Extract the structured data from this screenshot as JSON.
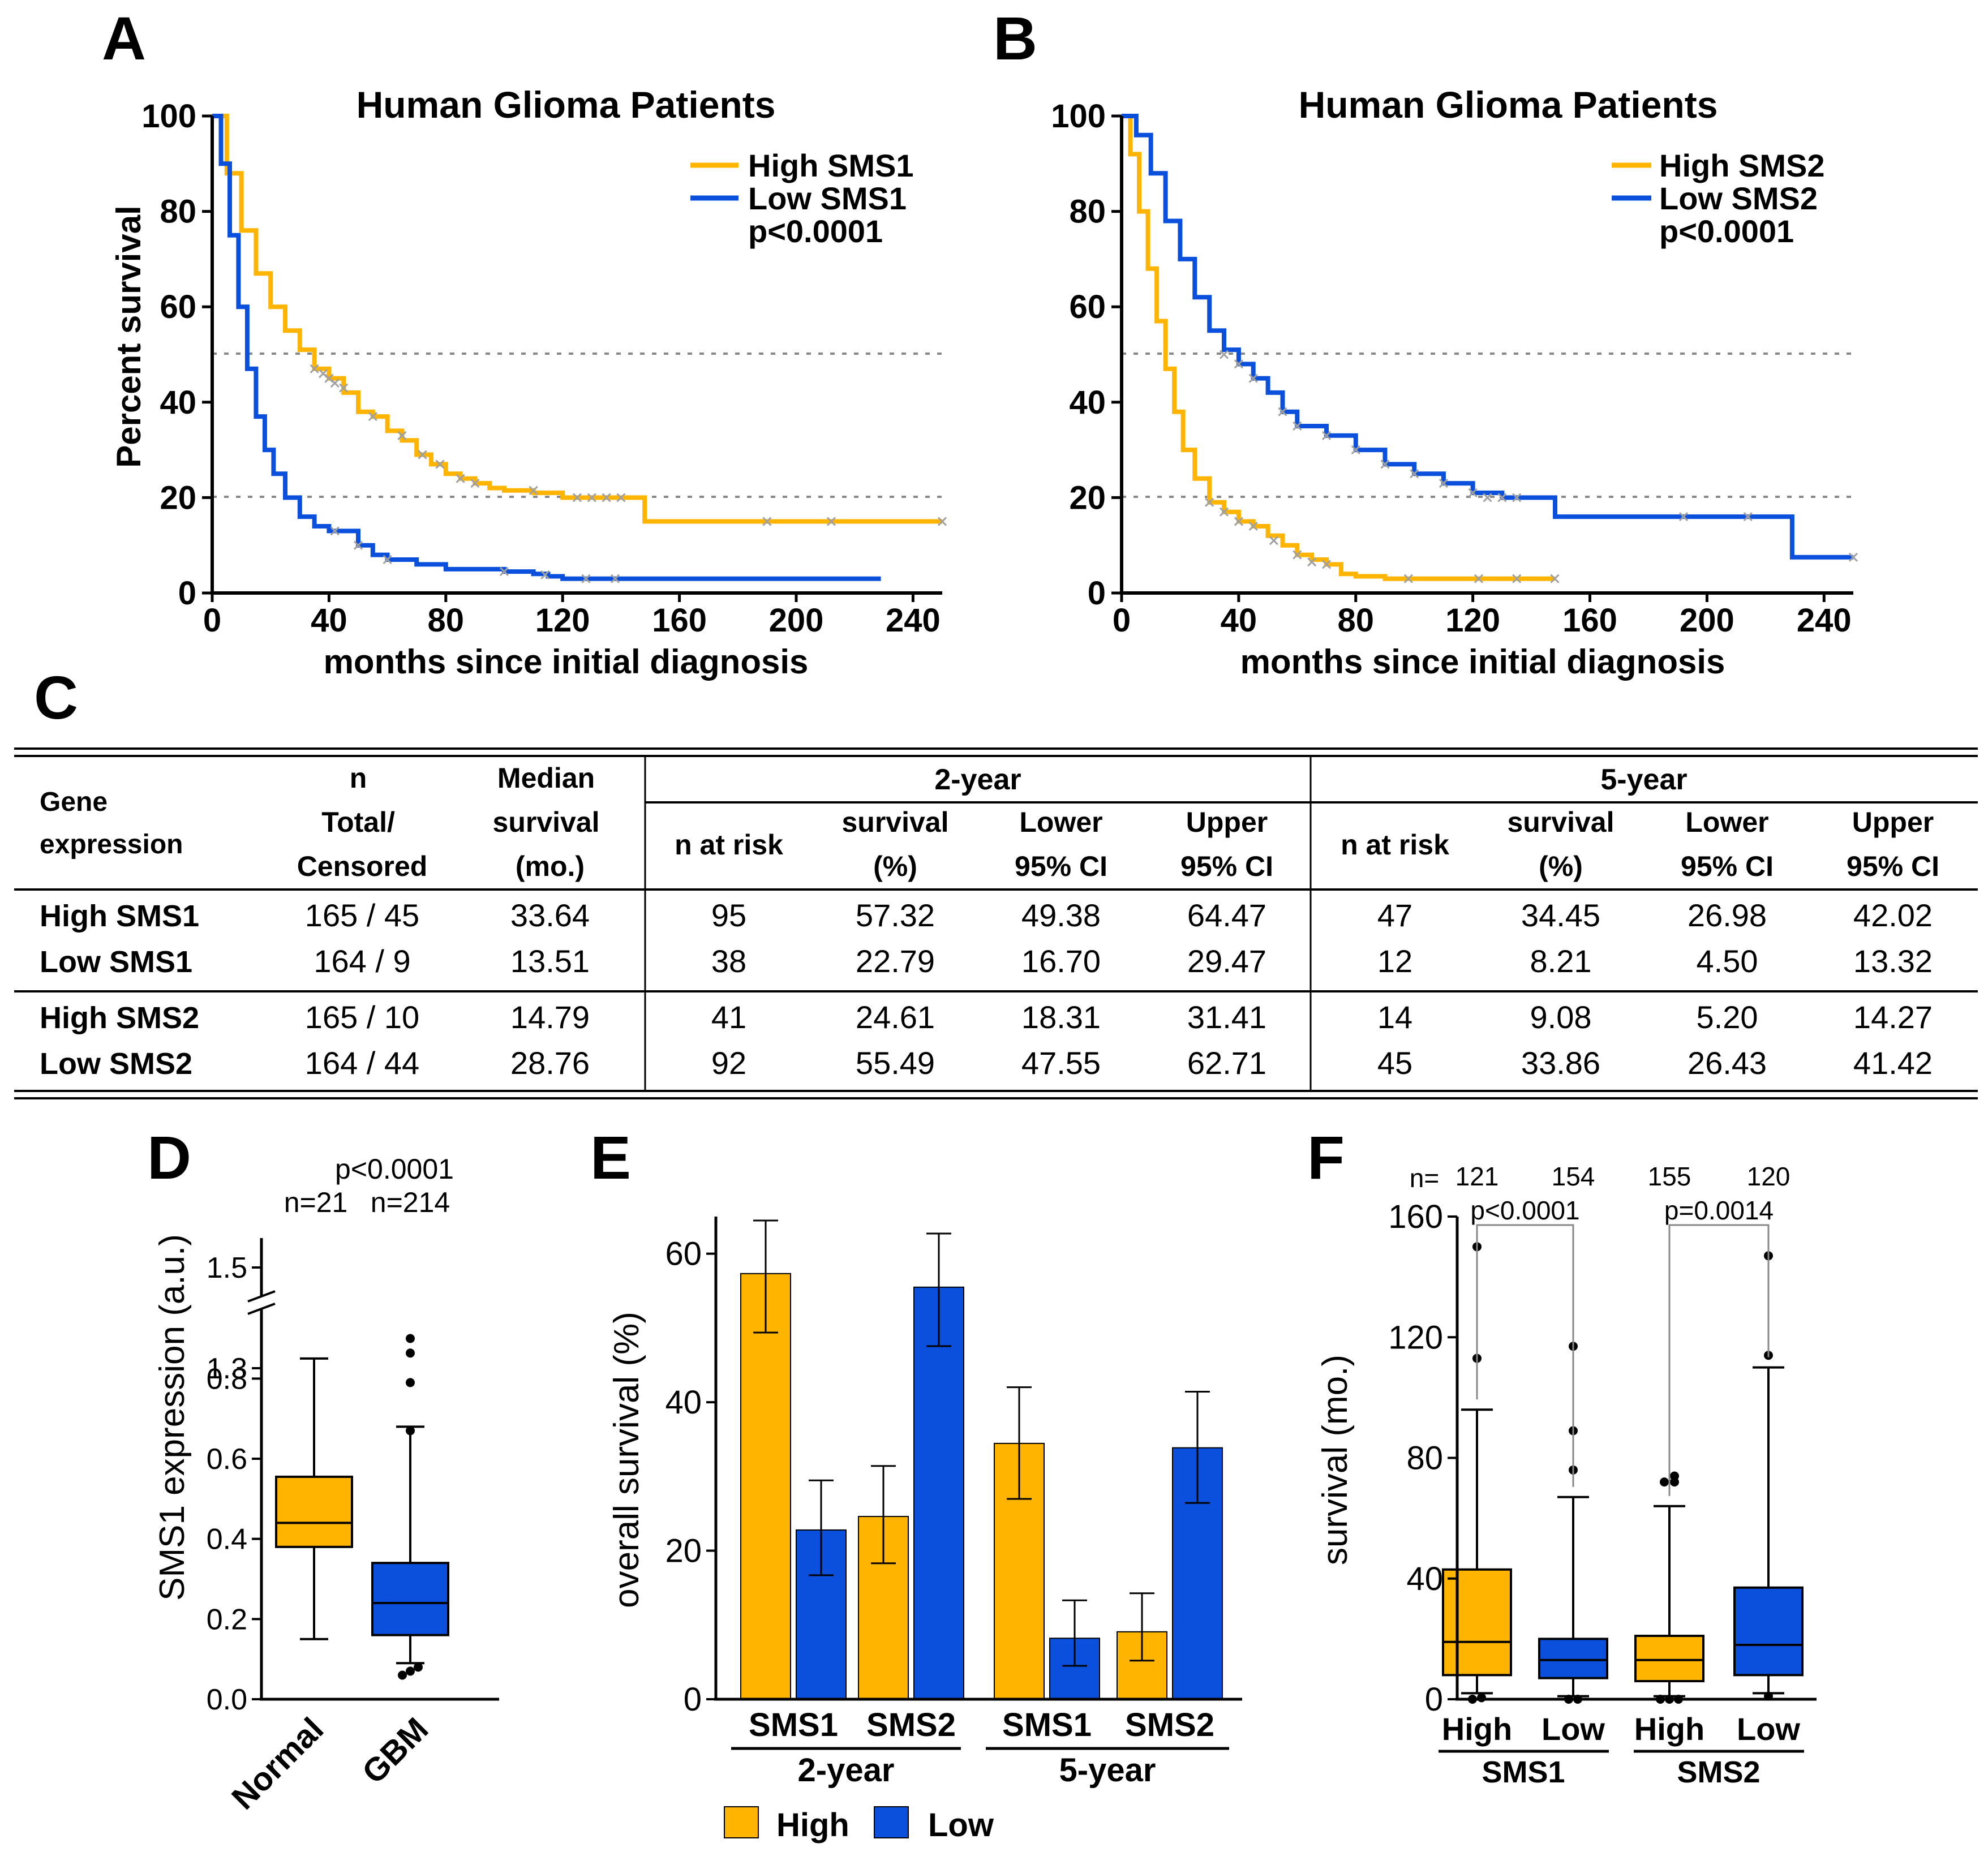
{
  "colors": {
    "high": "#FFB400",
    "low": "#0A50DC",
    "axis": "#000000",
    "censor": "#A0A0A0",
    "ref": "#888888"
  },
  "panels": {
    "A": {
      "letter": "A",
      "title": "Human Glioma Patients",
      "legend_high": "High SMS1",
      "legend_low": "Low SMS1",
      "pvalue": "p<0.0001"
    },
    "B": {
      "letter": "B",
      "title": "Human Glioma Patients",
      "legend_high": "High SMS2",
      "legend_low": "Low SMS2",
      "pvalue": "p<0.0001"
    },
    "C": {
      "letter": "C"
    },
    "D": {
      "letter": "D"
    },
    "E": {
      "letter": "E"
    },
    "F": {
      "letter": "F"
    }
  },
  "table": {
    "group_2y": "2-year",
    "group_5y": "5-year",
    "col_gene": [
      "Gene",
      "expression"
    ],
    "col_n": [
      "n",
      "Total/",
      "Censored"
    ],
    "col_median": [
      "Median",
      "survival",
      "(mo.)"
    ],
    "sub": [
      [
        "n at risk"
      ],
      [
        "survival",
        "(%)"
      ],
      [
        "Lower",
        "95% CI"
      ],
      [
        "Upper",
        "95% CI"
      ]
    ],
    "rows": [
      {
        "label": "High SMS1",
        "n": "165 / 45",
        "median": "33.64",
        "y2": [
          "95",
          "57.32",
          "49.38",
          "64.47"
        ],
        "y5": [
          "47",
          "34.45",
          "26.98",
          "42.02"
        ]
      },
      {
        "label": "Low SMS1",
        "n": "164 / 9",
        "median": "13.51",
        "y2": [
          "38",
          "22.79",
          "16.70",
          "29.47"
        ],
        "y5": [
          "12",
          "8.21",
          "4.50",
          "13.32"
        ]
      },
      {
        "label": "High SMS2",
        "n": "165 / 10",
        "median": "14.79",
        "y2": [
          "41",
          "24.61",
          "18.31",
          "31.41"
        ],
        "y5": [
          "14",
          "9.08",
          "5.20",
          "14.27"
        ]
      },
      {
        "label": "Low SMS2",
        "n": "164 / 44",
        "median": "28.76",
        "y2": [
          "92",
          "55.49",
          "47.55",
          "62.71"
        ],
        "y5": [
          "45",
          "33.86",
          "26.43",
          "41.42"
        ]
      }
    ]
  },
  "chart_data": [
    {
      "panel": "A",
      "type": "line",
      "title": "Human Glioma Patients",
      "xlabel": "months since initial diagnosis",
      "ylabel": "Percent survival",
      "xlim": [
        0,
        250
      ],
      "ylim": [
        0,
        100
      ],
      "xticks": [
        0,
        40,
        80,
        120,
        160,
        200,
        240
      ],
      "yticks": [
        0,
        20,
        40,
        60,
        80,
        100
      ],
      "ref_lines": [
        50,
        20
      ],
      "pvalue": "p<0.0001",
      "series": [
        {
          "name": "High SMS1",
          "color": "high",
          "x": [
            0,
            5,
            10,
            15,
            20,
            25,
            30,
            35,
            40,
            45,
            50,
            55,
            60,
            65,
            70,
            75,
            80,
            85,
            90,
            95,
            100,
            110,
            120,
            130,
            140,
            148,
            148.1,
            180,
            210,
            250
          ],
          "y": [
            100,
            88,
            76,
            67,
            60,
            55,
            51,
            47,
            45,
            42,
            38,
            37,
            34,
            32,
            29,
            27,
            25,
            24,
            23,
            22,
            21.5,
            21,
            20,
            20,
            20,
            20,
            15,
            15,
            15,
            15
          ],
          "censors": [
            [
              35,
              47
            ],
            [
              38,
              46
            ],
            [
              40,
              45
            ],
            [
              42,
              44
            ],
            [
              45,
              43
            ],
            [
              55,
              37
            ],
            [
              65,
              33
            ],
            [
              72,
              29
            ],
            [
              78,
              27
            ],
            [
              85,
              24
            ],
            [
              90,
              23
            ],
            [
              110,
              21.5
            ],
            [
              125,
              20
            ],
            [
              130,
              20
            ],
            [
              135,
              20
            ],
            [
              140,
              20
            ],
            [
              190,
              15
            ],
            [
              212,
              15
            ],
            [
              250,
              15
            ]
          ]
        },
        {
          "name": "Low SMS1",
          "color": "low",
          "x": [
            0,
            3,
            6,
            9,
            12,
            15,
            18,
            21,
            25,
            30,
            35,
            40,
            45,
            50,
            55,
            60,
            70,
            80,
            90,
            100,
            110,
            115,
            120,
            140,
            160,
            180,
            200,
            220,
            229
          ],
          "y": [
            100,
            90,
            75,
            60,
            47,
            37,
            30,
            25,
            20,
            16,
            14,
            13,
            13,
            10,
            8,
            7,
            6,
            5,
            5,
            4.5,
            4,
            3.5,
            3,
            3,
            3,
            3,
            3,
            3,
            3
          ],
          "censors": [
            [
              42,
              13
            ],
            [
              50,
              10
            ],
            [
              60,
              7
            ],
            [
              100,
              4.5
            ],
            [
              114,
              3.8
            ],
            [
              128,
              3
            ],
            [
              138,
              3
            ]
          ]
        }
      ]
    },
    {
      "panel": "B",
      "type": "line",
      "title": "Human Glioma Patients",
      "xlabel": "months since initial diagnosis",
      "ylabel": "Percent survival",
      "xlim": [
        0,
        250
      ],
      "ylim": [
        0,
        100
      ],
      "xticks": [
        0,
        40,
        80,
        120,
        160,
        200,
        240
      ],
      "yticks": [
        0,
        20,
        40,
        60,
        80,
        100
      ],
      "ref_lines": [
        50,
        20
      ],
      "pvalue": "p<0.0001",
      "series": [
        {
          "name": "High SMS2",
          "color": "high",
          "x": [
            0,
            3,
            6,
            9,
            12,
            15,
            18,
            21,
            25,
            30,
            35,
            40,
            45,
            50,
            55,
            60,
            65,
            70,
            75,
            80,
            90,
            100,
            120,
            140,
            148
          ],
          "y": [
            100,
            92,
            80,
            68,
            57,
            47,
            38,
            30,
            24,
            19,
            17,
            15,
            14,
            12,
            10,
            8,
            7,
            6,
            4,
            3.5,
            3,
            3,
            3,
            3,
            3
          ],
          "censors": [
            [
              30,
              19
            ],
            [
              35,
              17
            ],
            [
              40,
              15
            ],
            [
              45,
              14
            ],
            [
              52,
              11
            ],
            [
              60,
              8
            ],
            [
              65,
              6.5
            ],
            [
              70,
              6
            ],
            [
              98,
              3
            ],
            [
              122,
              3
            ],
            [
              135,
              3
            ],
            [
              148,
              3
            ]
          ]
        },
        {
          "name": "Low SMS2",
          "color": "low",
          "x": [
            0,
            5,
            10,
            15,
            20,
            25,
            30,
            35,
            40,
            45,
            50,
            55,
            60,
            70,
            80,
            90,
            100,
            110,
            120,
            130,
            140,
            148,
            148.1,
            200,
            229,
            229.1,
            250
          ],
          "y": [
            100,
            96,
            88,
            78,
            70,
            62,
            55,
            51,
            48,
            45,
            42,
            38,
            35,
            33,
            30,
            27,
            25,
            23,
            21,
            20,
            20,
            20,
            16,
            16,
            16,
            7.5,
            7.5
          ],
          "censors": [
            [
              35,
              50
            ],
            [
              40,
              48
            ],
            [
              45,
              45
            ],
            [
              55,
              38
            ],
            [
              60,
              35
            ],
            [
              70,
              33
            ],
            [
              80,
              30
            ],
            [
              90,
              27
            ],
            [
              100,
              25
            ],
            [
              110,
              23
            ],
            [
              120,
              21
            ],
            [
              125,
              20
            ],
            [
              130,
              20
            ],
            [
              135,
              20
            ],
            [
              192,
              16
            ],
            [
              214,
              16
            ],
            [
              250,
              7.5
            ]
          ]
        }
      ]
    },
    {
      "panel": "D",
      "type": "box",
      "ylabel": "SMS1 expression (a.u.)",
      "yticks": [
        "0.0",
        "0.2",
        "0.4",
        "0.6",
        "0.8",
        "1.3",
        "1.5"
      ],
      "axis_break": [
        0.9,
        1.25
      ],
      "pvalue": "p<0.0001",
      "categories": [
        "Normal",
        "GBM"
      ],
      "ns": [
        "n=21",
        "n=214"
      ],
      "boxes": [
        {
          "name": "Normal",
          "color": "high",
          "min": 0.15,
          "q1": 0.38,
          "median": 0.44,
          "q3": 0.555,
          "max": 0.85,
          "outliers": []
        },
        {
          "name": "GBM",
          "color": "low",
          "min": 0.09,
          "q1": 0.16,
          "median": 0.24,
          "q3": 0.34,
          "max": 0.68,
          "outliers": [
            0.06,
            0.07,
            0.08,
            0.67,
            0.79,
            0.9,
            1.33
          ]
        }
      ]
    },
    {
      "panel": "E",
      "type": "bar",
      "ylabel": "overall survival (%)",
      "ylim": [
        0,
        65
      ],
      "yticks": [
        0,
        20,
        40,
        60
      ],
      "categories": [
        "SMS1",
        "SMS2",
        "SMS1",
        "SMS2"
      ],
      "groups": [
        "2-year",
        "5-year"
      ],
      "legend": [
        "High",
        "Low"
      ],
      "series": [
        {
          "name": "High",
          "color": "high",
          "values": [
            57.32,
            24.61,
            34.45,
            9.08
          ],
          "lower": [
            49.38,
            18.31,
            26.98,
            5.2
          ],
          "upper": [
            64.47,
            31.41,
            42.02,
            14.27
          ]
        },
        {
          "name": "Low",
          "color": "low",
          "values": [
            22.79,
            55.49,
            8.21,
            33.86
          ],
          "lower": [
            16.7,
            47.55,
            4.5,
            26.43
          ],
          "upper": [
            29.47,
            62.71,
            13.32,
            41.42
          ]
        }
      ]
    },
    {
      "panel": "F",
      "type": "box",
      "ylabel": "survival (mo.)",
      "ylim": [
        0,
        160
      ],
      "yticks": [
        0,
        40,
        80,
        120,
        160
      ],
      "n_label": "n=",
      "categories": [
        "High",
        "Low",
        "High",
        "Low"
      ],
      "groups": [
        "SMS1",
        "SMS2"
      ],
      "ns": [
        "121",
        "154",
        "155",
        "120"
      ],
      "pvalues": [
        "p<0.0001",
        "p=0.0014"
      ],
      "boxes": [
        {
          "name": "High SMS1",
          "color": "high",
          "min": 2,
          "q1": 8,
          "median": 19,
          "q3": 43,
          "max": 96,
          "outliers": [
            0,
            0.5,
            113,
            150
          ]
        },
        {
          "name": "Low SMS1",
          "color": "low",
          "min": 1,
          "q1": 7,
          "median": 13,
          "q3": 20,
          "max": 67,
          "outliers": [
            0,
            0,
            76,
            89,
            117
          ]
        },
        {
          "name": "High SMS2",
          "color": "high",
          "min": 1,
          "q1": 6,
          "median": 13,
          "q3": 21,
          "max": 64,
          "outliers": [
            0,
            0,
            0,
            72,
            72,
            74
          ]
        },
        {
          "name": "Low SMS2",
          "color": "low",
          "min": 2,
          "q1": 8,
          "median": 18,
          "q3": 37,
          "max": 110,
          "outliers": [
            1,
            114,
            147
          ]
        }
      ]
    }
  ]
}
